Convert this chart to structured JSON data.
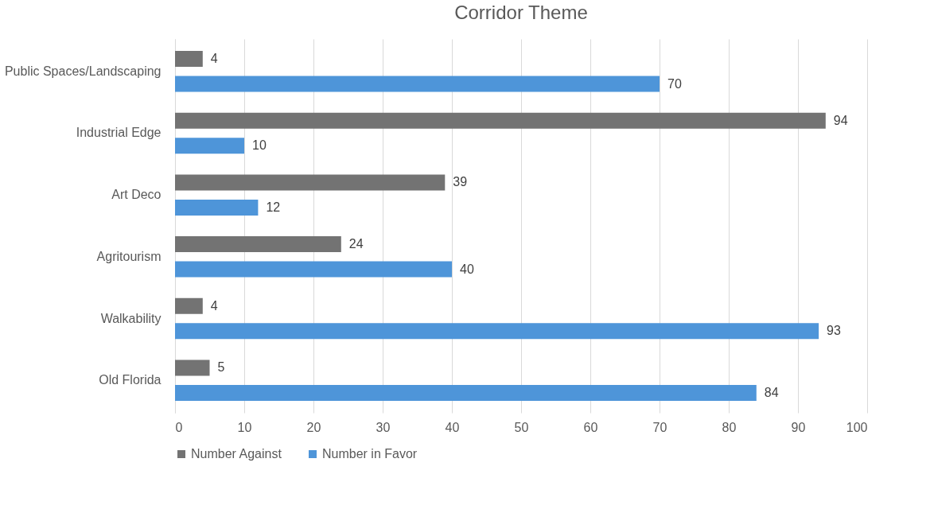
{
  "chart_data": {
    "type": "bar",
    "orientation": "horizontal",
    "title": "Corridor Theme",
    "categories": [
      "Public Spaces/Landscaping",
      "Industrial Edge",
      "Art Deco",
      "Agritourism",
      "Walkability",
      "Old Florida"
    ],
    "series": [
      {
        "name": "Number Against",
        "color": "#737373",
        "values": [
          4,
          94,
          39,
          24,
          4,
          5
        ]
      },
      {
        "name": "Number in Favor",
        "color": "#4e95d9",
        "values": [
          70,
          10,
          12,
          40,
          93,
          84
        ]
      }
    ],
    "xlim": [
      0,
      100
    ],
    "xticks": [
      0,
      10,
      20,
      30,
      40,
      50,
      60,
      70,
      80,
      90,
      100
    ],
    "grid": "x",
    "legend": "bottom",
    "data_labels": true
  }
}
